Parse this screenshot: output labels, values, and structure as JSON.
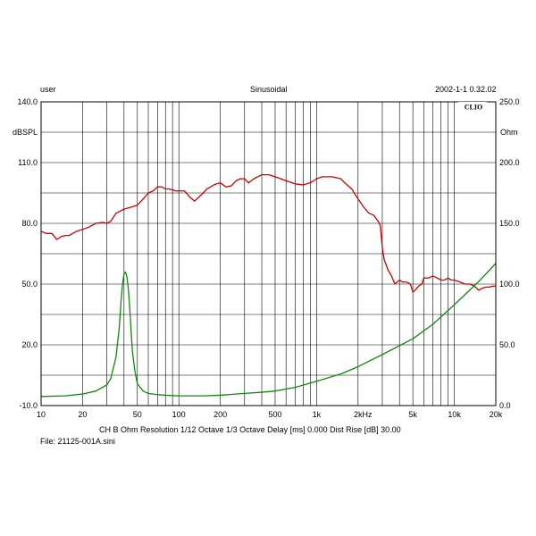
{
  "header": {
    "user": "user",
    "mode": "Sinusoidal",
    "datetime": "2002-1-1 0.32.02"
  },
  "brand": "CLIO",
  "footer": {
    "settings": "CH B   Ohm   Resolution 1/12 Octave   1/3 Octave   Delay [ms] 0.000   Dist Rise [dB] 30.00",
    "file": "File: 21125-001A.sini"
  },
  "colors": {
    "spl": "#cc0000",
    "impedance": "#118811",
    "grid": "#000000"
  },
  "chart_data": {
    "type": "line",
    "x_scale": "log",
    "xlim": [
      10,
      20000
    ],
    "x_tick_labels": [
      {
        "v": 10,
        "label": "10"
      },
      {
        "v": 20,
        "label": "20"
      },
      {
        "v": 50,
        "label": "50"
      },
      {
        "v": 100,
        "label": "100"
      },
      {
        "v": 200,
        "label": "200"
      },
      {
        "v": 500,
        "label": "500"
      },
      {
        "v": 1000,
        "label": "1k"
      },
      {
        "v": 2000,
        "label": "2k"
      },
      {
        "v": 5000,
        "label": "5k"
      },
      {
        "v": 10000,
        "label": "10k"
      },
      {
        "v": 20000,
        "label": "20k"
      }
    ],
    "xunit": "Hz",
    "y_left": {
      "label": "dBSPL",
      "lim": [
        -10,
        140
      ],
      "ticks": [
        {
          "v": 140,
          "label": "140.0"
        },
        {
          "v": 110,
          "label": "110.0"
        },
        {
          "v": 80,
          "label": "80.0"
        },
        {
          "v": 50,
          "label": "50.0"
        },
        {
          "v": 20,
          "label": "20.0"
        },
        {
          "v": -10,
          "label": "-10.0"
        }
      ]
    },
    "y_right": {
      "label": "Ohm",
      "lim": [
        0,
        250
      ],
      "ticks": [
        {
          "v": 250,
          "label": "250.0"
        },
        {
          "v": 200,
          "label": "200.0"
        },
        {
          "v": 150,
          "label": "150.0"
        },
        {
          "v": 100,
          "label": "100.0"
        },
        {
          "v": 50,
          "label": "50.0"
        },
        {
          "v": 0,
          "label": "0.0"
        }
      ]
    },
    "grid": true,
    "series": [
      {
        "axis": "left",
        "color": "#cc0000",
        "points": [
          [
            10,
            76
          ],
          [
            11,
            75
          ],
          [
            12,
            75
          ],
          [
            13,
            72
          ],
          [
            14,
            73.5
          ],
          [
            15,
            74
          ],
          [
            16,
            74
          ],
          [
            18,
            76
          ],
          [
            20,
            77
          ],
          [
            22,
            78
          ],
          [
            25,
            80
          ],
          [
            28,
            80.5
          ],
          [
            30,
            80
          ],
          [
            32,
            81
          ],
          [
            35,
            85
          ],
          [
            40,
            87
          ],
          [
            45,
            88
          ],
          [
            50,
            89
          ],
          [
            55,
            92
          ],
          [
            60,
            95
          ],
          [
            65,
            96
          ],
          [
            70,
            98
          ],
          [
            75,
            98
          ],
          [
            80,
            97
          ],
          [
            85,
            97
          ],
          [
            90,
            96.5
          ],
          [
            95,
            96
          ],
          [
            100,
            96
          ],
          [
            110,
            96
          ],
          [
            120,
            93
          ],
          [
            130,
            91
          ],
          [
            140,
            93
          ],
          [
            150,
            95
          ],
          [
            160,
            97
          ],
          [
            170,
            98
          ],
          [
            180,
            99
          ],
          [
            200,
            100
          ],
          [
            220,
            98
          ],
          [
            240,
            98.5
          ],
          [
            260,
            101
          ],
          [
            280,
            102
          ],
          [
            300,
            102
          ],
          [
            320,
            100
          ],
          [
            350,
            102
          ],
          [
            400,
            104
          ],
          [
            450,
            104
          ],
          [
            500,
            103
          ],
          [
            550,
            102
          ],
          [
            600,
            101
          ],
          [
            700,
            99.5
          ],
          [
            800,
            99
          ],
          [
            900,
            100
          ],
          [
            1000,
            102
          ],
          [
            1100,
            103
          ],
          [
            1200,
            103
          ],
          [
            1300,
            103
          ],
          [
            1400,
            102.5
          ],
          [
            1500,
            102
          ],
          [
            1600,
            100
          ],
          [
            1800,
            97
          ],
          [
            2000,
            92
          ],
          [
            2200,
            88
          ],
          [
            2400,
            85
          ],
          [
            2600,
            84
          ],
          [
            2800,
            81
          ],
          [
            2900,
            79
          ],
          [
            3000,
            68
          ],
          [
            3100,
            62
          ],
          [
            3300,
            57
          ],
          [
            3500,
            54
          ],
          [
            3700,
            50
          ],
          [
            4000,
            52
          ],
          [
            4200,
            51
          ],
          [
            4500,
            51
          ],
          [
            4800,
            50
          ],
          [
            5000,
            46
          ],
          [
            5200,
            47
          ],
          [
            5500,
            49
          ],
          [
            5800,
            50
          ],
          [
            6000,
            53
          ],
          [
            6500,
            53
          ],
          [
            7000,
            54
          ],
          [
            7500,
            53
          ],
          [
            8000,
            52
          ],
          [
            8500,
            52
          ],
          [
            9000,
            53
          ],
          [
            9500,
            52
          ],
          [
            10000,
            52
          ],
          [
            11000,
            51
          ],
          [
            12000,
            50
          ],
          [
            13000,
            50
          ],
          [
            14000,
            49
          ],
          [
            15000,
            47
          ],
          [
            16000,
            48
          ],
          [
            17000,
            48.5
          ],
          [
            18000,
            48.5
          ],
          [
            19000,
            49
          ],
          [
            20000,
            49
          ]
        ]
      },
      {
        "axis": "right",
        "color": "#118811",
        "points": [
          [
            10,
            7.5
          ],
          [
            15,
            8
          ],
          [
            20,
            9.5
          ],
          [
            25,
            12
          ],
          [
            30,
            17
          ],
          [
            32,
            22
          ],
          [
            35,
            40
          ],
          [
            37,
            65
          ],
          [
            38,
            85
          ],
          [
            39,
            100
          ],
          [
            40,
            108
          ],
          [
            41,
            110
          ],
          [
            42,
            106
          ],
          [
            43,
            96
          ],
          [
            44,
            80
          ],
          [
            45,
            62
          ],
          [
            46,
            45
          ],
          [
            48,
            28
          ],
          [
            50,
            18
          ],
          [
            55,
            12
          ],
          [
            60,
            10
          ],
          [
            70,
            9
          ],
          [
            80,
            8.5
          ],
          [
            100,
            8
          ],
          [
            150,
            8
          ],
          [
            200,
            8.5
          ],
          [
            300,
            10
          ],
          [
            400,
            11
          ],
          [
            500,
            12
          ],
          [
            700,
            15
          ],
          [
            1000,
            20
          ],
          [
            1500,
            26
          ],
          [
            2000,
            32
          ],
          [
            3000,
            42
          ],
          [
            5000,
            55
          ],
          [
            7000,
            67
          ],
          [
            10000,
            83
          ],
          [
            15000,
            102
          ],
          [
            20000,
            117
          ]
        ]
      }
    ]
  }
}
